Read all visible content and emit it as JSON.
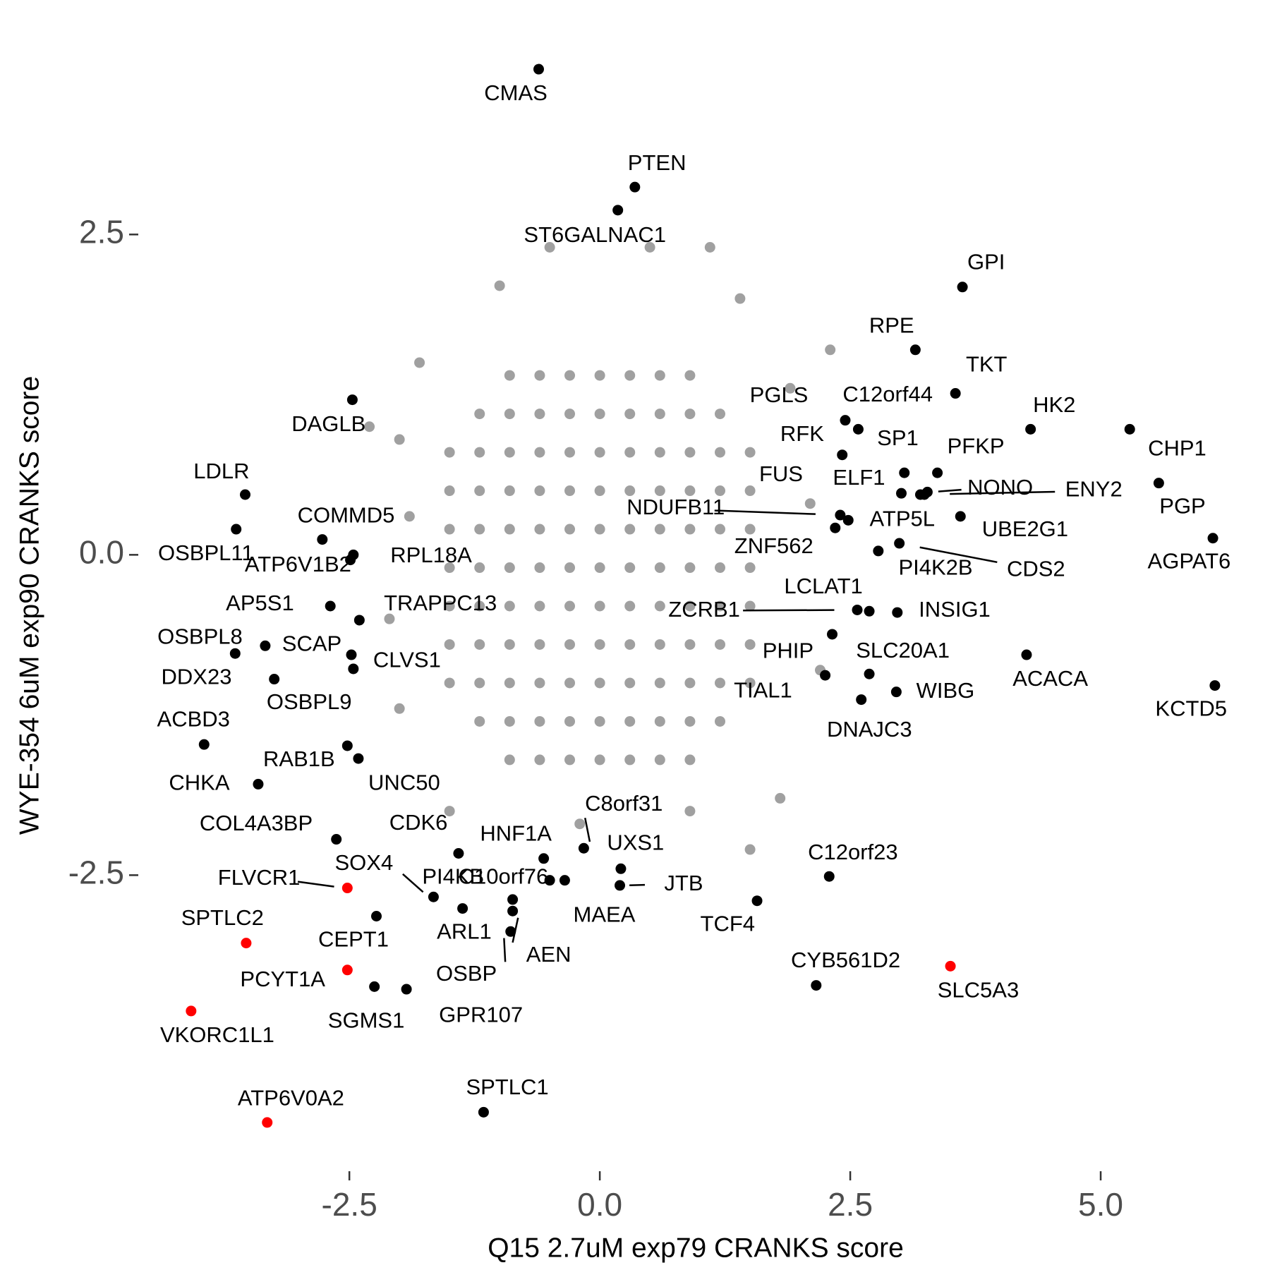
{
  "chart_data": {
    "type": "scatter",
    "x_label": "Q15 2.7uM exp79 CRANKS score",
    "y_label": "WYE-354 6uM exp90 CRANKS score",
    "xlim": [
      -4.6,
      6.5
    ],
    "ylim": [
      -4.75,
      3.95
    ],
    "xticks": [
      -2.5,
      {
        "value": 0,
        "label": "0.0"
      },
      2.5,
      {
        "value": 5,
        "label": "5.0"
      }
    ],
    "yticks": [
      -2.5,
      {
        "value": 0,
        "label": "0.0"
      },
      2.5
    ],
    "background_points": {
      "color": "#a0a0a0",
      "x": [
        -0.9,
        -0.6,
        -0.3,
        0,
        0.3,
        0.6,
        0.9,
        -1.2,
        -0.9,
        -0.6,
        -0.3,
        0,
        0.3,
        0.6,
        0.9,
        1.2,
        -1.5,
        -1.2,
        -0.9,
        -0.6,
        -0.3,
        0,
        0.3,
        0.6,
        0.9,
        1.2,
        1.5,
        -1.5,
        -1.2,
        -0.9,
        -0.6,
        -0.3,
        0,
        0.3,
        0.6,
        0.9,
        1.2,
        1.5,
        -1.5,
        -1.2,
        -0.9,
        -0.6,
        -0.3,
        0,
        0.3,
        0.6,
        0.9,
        1.2,
        1.5,
        -1.5,
        -1.2,
        -0.9,
        -0.6,
        -0.3,
        0,
        0.3,
        0.6,
        0.9,
        1.2,
        1.5,
        -1.5,
        -1.2,
        -0.9,
        -0.6,
        -0.3,
        0,
        0.3,
        0.6,
        0.9,
        1.2,
        1.5,
        -1.5,
        -1.2,
        -0.9,
        -0.6,
        -0.3,
        0,
        0.3,
        0.6,
        0.9,
        1.2,
        1.5,
        -1.5,
        -1.2,
        -0.9,
        -0.6,
        -0.3,
        0,
        0.3,
        0.6,
        0.9,
        1.2,
        1.5,
        -1.2,
        -0.9,
        -0.6,
        -0.3,
        0,
        0.3,
        0.6,
        0.9,
        1.2,
        -0.9,
        -0.6,
        -0.3,
        0,
        0.3,
        0.6,
        0.9,
        -2.0,
        -1.9,
        -2.1,
        -2.0,
        -1.8,
        -1.5,
        0.9,
        1.8,
        2.2,
        2.1,
        1.9,
        0.5,
        -0.5,
        1.4,
        -1.0,
        2.3,
        -2.3,
        1.5,
        -0.2,
        1.1
      ],
      "y": [
        1.4,
        1.4,
        1.4,
        1.4,
        1.4,
        1.4,
        1.4,
        1.1,
        1.1,
        1.1,
        1.1,
        1.1,
        1.1,
        1.1,
        1.1,
        1.1,
        0.8,
        0.8,
        0.8,
        0.8,
        0.8,
        0.8,
        0.8,
        0.8,
        0.8,
        0.8,
        0.8,
        0.5,
        0.5,
        0.5,
        0.5,
        0.5,
        0.5,
        0.5,
        0.5,
        0.5,
        0.5,
        0.5,
        0.2,
        0.2,
        0.2,
        0.2,
        0.2,
        0.2,
        0.2,
        0.2,
        0.2,
        0.2,
        0.2,
        -0.1,
        -0.1,
        -0.1,
        -0.1,
        -0.1,
        -0.1,
        -0.1,
        -0.1,
        -0.1,
        -0.1,
        -0.1,
        -0.4,
        -0.4,
        -0.4,
        -0.4,
        -0.4,
        -0.4,
        -0.4,
        -0.4,
        -0.4,
        -0.4,
        -0.4,
        -0.7,
        -0.7,
        -0.7,
        -0.7,
        -0.7,
        -0.7,
        -0.7,
        -0.7,
        -0.7,
        -0.7,
        -0.7,
        -1.0,
        -1.0,
        -1.0,
        -1.0,
        -1.0,
        -1.0,
        -1.0,
        -1.0,
        -1.0,
        -1.0,
        -1.0,
        -1.3,
        -1.3,
        -1.3,
        -1.3,
        -1.3,
        -1.3,
        -1.3,
        -1.3,
        -1.3,
        -1.6,
        -1.6,
        -1.6,
        -1.6,
        -1.6,
        -1.6,
        -1.6,
        0.9,
        0.3,
        -0.5,
        -1.2,
        1.5,
        -2.0,
        -2.0,
        -1.9,
        -0.9,
        0.4,
        1.3,
        2.4,
        2.4,
        2.0,
        2.1,
        1.6,
        1.0,
        -2.3,
        -2.1,
        2.4
      ]
    },
    "labeled_points": {
      "labels": [
        "CMAS",
        "PTEN",
        "ST6GALNAC1",
        "GPI",
        "RPE",
        "TKT",
        "PGLS",
        "C12orf44",
        "HK2",
        "CHP1",
        "RFK",
        "SP1",
        "PFKP",
        "FUS",
        "ELF1",
        "NONO",
        "ENY2",
        "PGP",
        "NDUFB11",
        "ATP5L",
        "UBE2G1",
        "ZNF562",
        "AGPAT6",
        "CDS2",
        "PI4K2B",
        "LCLAT1",
        "ZCRB1",
        "INSIG1",
        "PHIP",
        "SLC20A1",
        "TIAL1",
        "DNAJC3",
        "WIBG",
        "ACACA",
        "KCTD5",
        "DAGLB",
        "LDLR",
        "OSBPL11",
        "COMMD5",
        "ATP6V1B2",
        "RPL18A",
        "AP5S1",
        "TRAPPC13",
        "OSBPL8",
        "SCAP",
        "CLVS1",
        "DDX23",
        "OSBPL9",
        "ACBD3",
        "RAB1B",
        "UNC50",
        "CHKA",
        "COL4A3BP",
        "CDK6",
        "HNF1A",
        "C8orf31",
        "UXS1",
        "SOX4",
        "FLVCR1",
        "PI4KB",
        "C10orf76",
        "JTB",
        "MAEA",
        "TCF4",
        "C12orf23",
        "ARL1",
        "SPTLC2",
        "CEPT1",
        "AEN",
        "OSBP",
        "CYB561D2",
        "SLC5A3",
        "PCYT1A",
        "SGMS1",
        "GPR107",
        "VKORC1L1",
        "ATP6V0A2",
        "SPTLC1"
      ],
      "x": [
        -0.61,
        0.35,
        0.18,
        3.62,
        3.15,
        3.55,
        2.45,
        2.58,
        4.3,
        5.29,
        2.42,
        3.04,
        3.37,
        3.01,
        3.2,
        3.27,
        3.24,
        5.58,
        2.4,
        2.48,
        3.6,
        2.35,
        6.12,
        2.99,
        2.78,
        2.69,
        2.57,
        2.97,
        2.32,
        2.69,
        2.25,
        2.61,
        2.96,
        4.26,
        6.14,
        -2.47,
        -3.54,
        -3.63,
        -2.77,
        -2.49,
        -2.46,
        -2.69,
        -2.4,
        -3.64,
        -3.34,
        -2.48,
        -3.25,
        -2.46,
        -3.95,
        -2.52,
        -2.41,
        -3.41,
        -2.63,
        -1.41,
        -0.56,
        -0.16,
        0.21,
        -1.66,
        -2.52,
        -0.5,
        -0.35,
        0.2,
        -0.87,
        1.57,
        2.29,
        -1.37,
        -3.53,
        -2.23,
        -0.87,
        -0.89,
        2.16,
        3.5,
        -2.52,
        -2.25,
        -1.93,
        -4.08,
        -3.32,
        -1.16
      ],
      "y": [
        3.79,
        2.87,
        2.69,
        2.09,
        1.6,
        1.26,
        1.05,
        0.98,
        0.98,
        0.98,
        0.78,
        0.64,
        0.64,
        0.48,
        0.47,
        0.49,
        0.47,
        0.56,
        0.31,
        0.27,
        0.3,
        0.21,
        0.13,
        0.09,
        0.03,
        -0.44,
        -0.43,
        -0.45,
        -0.62,
        -0.93,
        -0.94,
        -1.13,
        -1.07,
        -0.78,
        -1.02,
        1.21,
        0.47,
        0.2,
        0.12,
        -0.04,
        0.0,
        -0.4,
        -0.51,
        -0.77,
        -0.71,
        -0.78,
        -0.97,
        -0.89,
        -1.48,
        -1.49,
        -1.59,
        -1.79,
        -2.22,
        -2.33,
        -2.37,
        -2.29,
        -2.45,
        -2.67,
        -2.6,
        -2.54,
        -2.54,
        -2.58,
        -2.69,
        -2.7,
        -2.51,
        -2.76,
        -3.03,
        -2.82,
        -2.78,
        -2.94,
        -3.36,
        -3.21,
        -3.24,
        -3.37,
        -3.39,
        -3.56,
        -4.43,
        -4.35
      ],
      "colors": [
        "#000000",
        "#000000",
        "#000000",
        "#000000",
        "#000000",
        "#000000",
        "#000000",
        "#000000",
        "#000000",
        "#000000",
        "#000000",
        "#000000",
        "#000000",
        "#000000",
        "#000000",
        "#000000",
        "#000000",
        "#000000",
        "#000000",
        "#000000",
        "#000000",
        "#000000",
        "#000000",
        "#000000",
        "#000000",
        "#000000",
        "#000000",
        "#000000",
        "#000000",
        "#000000",
        "#000000",
        "#000000",
        "#000000",
        "#000000",
        "#000000",
        "#000000",
        "#000000",
        "#000000",
        "#000000",
        "#000000",
        "#000000",
        "#000000",
        "#000000",
        "#000000",
        "#000000",
        "#000000",
        "#000000",
        "#000000",
        "#000000",
        "#000000",
        "#000000",
        "#000000",
        "#000000",
        "#000000",
        "#000000",
        "#000000",
        "#000000",
        "#000000",
        "#ff0000",
        "#000000",
        "#000000",
        "#000000",
        "#000000",
        "#000000",
        "#000000",
        "#000000",
        "#ff0000",
        "#000000",
        "#000000",
        "#000000",
        "#000000",
        "#ff0000",
        "#ff0000",
        "#000000",
        "#000000",
        "#ff0000",
        "#ff0000",
        "#000000"
      ]
    }
  }
}
